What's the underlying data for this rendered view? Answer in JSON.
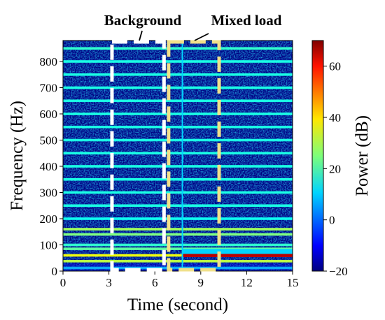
{
  "chart_data": {
    "type": "heatmap",
    "title": "",
    "xlabel": "Time (second)",
    "ylabel": "Frequency (Hz)",
    "xlim": [
      0,
      15
    ],
    "ylim": [
      0,
      880
    ],
    "xticks": [
      0,
      3,
      6,
      9,
      12,
      15
    ],
    "yticks": [
      0,
      100,
      200,
      300,
      400,
      500,
      600,
      700,
      800
    ],
    "colorbar": {
      "label": "Power (dB)",
      "range": [
        -20,
        70
      ],
      "ticks": [
        -20,
        0,
        20,
        40,
        60
      ],
      "tick_labels": [
        "−20",
        "0",
        "20",
        "40",
        "60"
      ],
      "colormap": "jet"
    },
    "background_level_db": -20,
    "harmonic_lines": [
      {
        "freq": 12,
        "power_db": 15
      },
      {
        "freq": 38,
        "power_db": 30
      },
      {
        "freq": 60,
        "power_db": 35
      },
      {
        "freq": 85,
        "power_db": 22
      },
      {
        "freq": 100,
        "power_db": 18
      },
      {
        "freq": 140,
        "power_db": 25
      },
      {
        "freq": 160,
        "power_db": 28
      },
      {
        "freq": 200,
        "power_db": 15
      },
      {
        "freq": 250,
        "power_db": 16
      },
      {
        "freq": 300,
        "power_db": 16
      },
      {
        "freq": 350,
        "power_db": 16
      },
      {
        "freq": 400,
        "power_db": 16
      },
      {
        "freq": 450,
        "power_db": 16
      },
      {
        "freq": 500,
        "power_db": 16
      },
      {
        "freq": 550,
        "power_db": 16
      },
      {
        "freq": 600,
        "power_db": 16
      },
      {
        "freq": 650,
        "power_db": 16
      },
      {
        "freq": 700,
        "power_db": 16
      },
      {
        "freq": 750,
        "power_db": 16
      },
      {
        "freq": 800,
        "power_db": 16
      },
      {
        "freq": 850,
        "power_db": 18
      }
    ],
    "load_events": [
      {
        "time_start": 7.8,
        "time_end": 15,
        "freq": 60,
        "power_db": 65
      },
      {
        "time_start": 7.8,
        "time_end": 15,
        "freq": 75,
        "power_db": 10
      }
    ],
    "transient_time": 7.8,
    "annotations": [
      {
        "text": "Background",
        "time_range": [
          3.2,
          6.6
        ],
        "color": "#ffffff"
      },
      {
        "text": "Mixed load",
        "time_range": [
          6.9,
          10.2
        ],
        "color": "#f0e08a"
      }
    ]
  }
}
